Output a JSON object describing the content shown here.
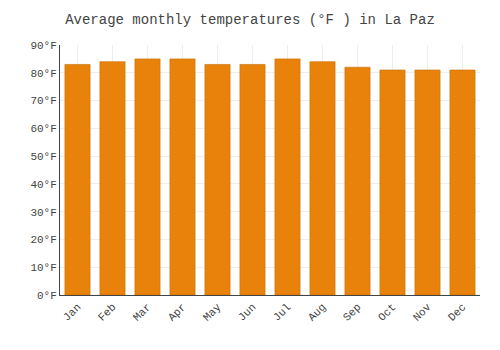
{
  "chart_data": {
    "type": "bar",
    "title": "Average monthly temperatures (°F ) in La Paz",
    "categories": [
      "Jan",
      "Feb",
      "Mar",
      "Apr",
      "May",
      "Jun",
      "Jul",
      "Aug",
      "Sep",
      "Oct",
      "Nov",
      "Dec"
    ],
    "values": [
      83,
      84,
      85,
      85,
      83,
      83,
      85,
      84,
      82,
      81,
      81,
      81
    ],
    "color": "#E8820A",
    "ylim": [
      0,
      90
    ],
    "yticks": [
      {
        "value": 0,
        "label": "0°F"
      },
      {
        "value": 10,
        "label": "10°F"
      },
      {
        "value": 20,
        "label": "20°F"
      },
      {
        "value": 30,
        "label": "30°F"
      },
      {
        "value": 40,
        "label": "40°F"
      },
      {
        "value": 50,
        "label": "50°F"
      },
      {
        "value": 60,
        "label": "60°F"
      },
      {
        "value": 70,
        "label": "70°F"
      },
      {
        "value": 80,
        "label": "80°F"
      },
      {
        "value": 90,
        "label": "90°F"
      }
    ],
    "grid": true
  }
}
